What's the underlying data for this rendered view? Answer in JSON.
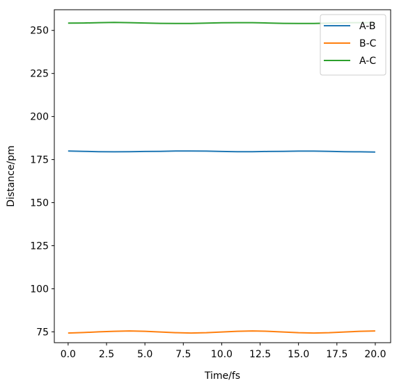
{
  "chart_data": {
    "type": "line",
    "title": "",
    "xlabel": "Time/fs",
    "ylabel": "Distance/pm",
    "xlim": [
      -0.9,
      21.0
    ],
    "ylim": [
      68.7,
      262.0
    ],
    "xticks": [
      0.0,
      2.5,
      5.0,
      7.5,
      10.0,
      12.5,
      15.0,
      17.5,
      20.0
    ],
    "xtick_labels": [
      "0.0",
      "2.5",
      "5.0",
      "7.5",
      "10.0",
      "12.5",
      "15.0",
      "17.5",
      "20.0"
    ],
    "yticks": [
      75,
      100,
      125,
      150,
      175,
      200,
      225,
      250
    ],
    "ytick_labels": [
      "75",
      "100",
      "125",
      "150",
      "175",
      "200",
      "225",
      "250"
    ],
    "grid": false,
    "legend_position": "top-right",
    "x": [
      0,
      1,
      2,
      3,
      4,
      5,
      6,
      7,
      8,
      9,
      10,
      11,
      12,
      13,
      14,
      15,
      16,
      17,
      18,
      19,
      20
    ],
    "series": [
      {
        "name": "A-B",
        "color": "#1f77b4",
        "values": [
          180.0,
          179.8,
          179.6,
          179.5,
          179.6,
          179.7,
          179.8,
          180.0,
          180.0,
          179.9,
          179.7,
          179.6,
          179.6,
          179.7,
          179.8,
          179.9,
          179.9,
          179.8,
          179.6,
          179.5,
          179.4
        ]
      },
      {
        "name": "B-C",
        "color": "#ff7f0e",
        "values": [
          74.3,
          74.6,
          75.0,
          75.3,
          75.5,
          75.3,
          74.9,
          74.5,
          74.3,
          74.5,
          74.9,
          75.3,
          75.5,
          75.3,
          74.9,
          74.5,
          74.3,
          74.5,
          74.9,
          75.3,
          75.5
        ]
      },
      {
        "name": "A-C",
        "color": "#2ca02c",
        "values": [
          254.2,
          254.3,
          254.5,
          254.6,
          254.5,
          254.3,
          254.1,
          254.0,
          254.0,
          254.2,
          254.4,
          254.5,
          254.5,
          254.3,
          254.1,
          254.0,
          254.0,
          254.2,
          254.4,
          254.5,
          254.5
        ]
      }
    ]
  }
}
